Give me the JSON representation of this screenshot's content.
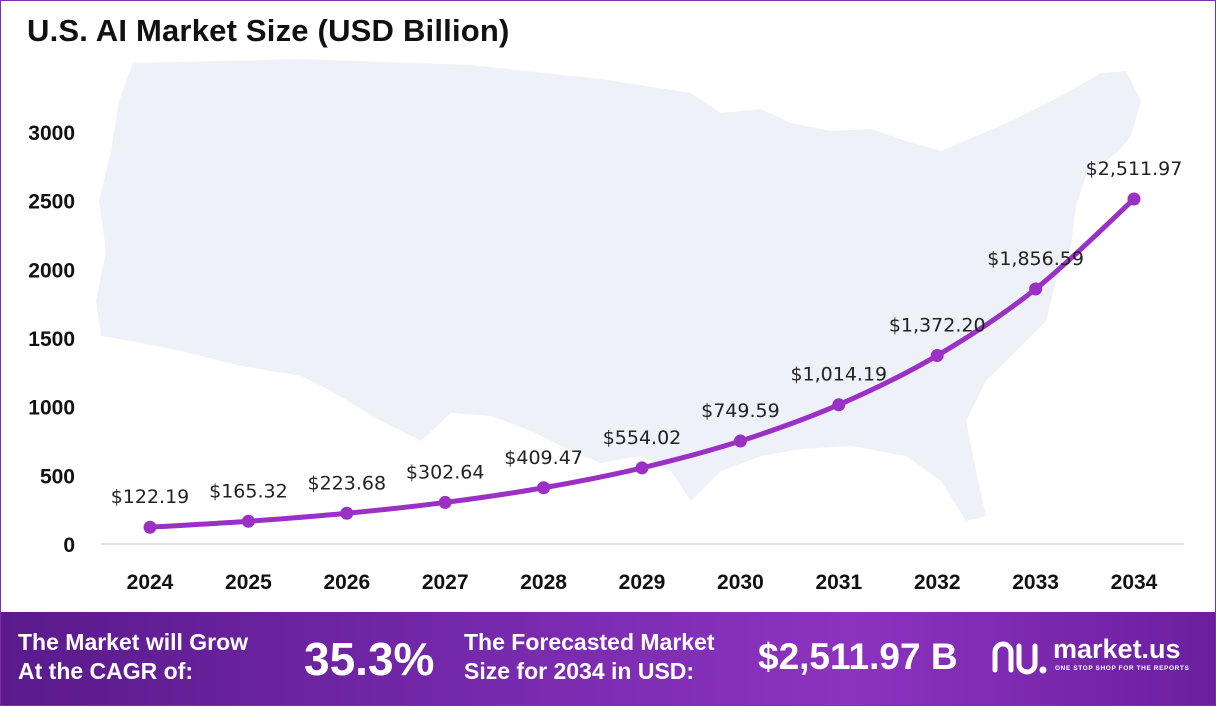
{
  "title": "U.S. AI Market Size (USD Billion)",
  "chart_data": {
    "type": "line",
    "categories": [
      "2024",
      "2025",
      "2026",
      "2027",
      "2028",
      "2029",
      "2030",
      "2031",
      "2032",
      "2033",
      "2034"
    ],
    "values": [
      122.19,
      165.32,
      223.68,
      302.64,
      409.47,
      554.02,
      749.59,
      1014.19,
      1372.2,
      1856.59,
      2511.97
    ],
    "data_labels": [
      "$122.19",
      "$165.32",
      "$223.68",
      "$302.64",
      "$409.47",
      "$554.02",
      "$749.59",
      "$1,014.19",
      "$1,372.20",
      "$1,856.59",
      "$2,511.97"
    ],
    "y_ticks": [
      0,
      500,
      1000,
      1500,
      2000,
      2500,
      3000
    ],
    "ylim": [
      0,
      3000
    ],
    "grid": false,
    "legend": false,
    "line_color": "#9b30c4",
    "background_image": "us-map-silhouette"
  },
  "footer": {
    "cagr_text_line1": "The Market will Grow",
    "cagr_text_line2": "At the CAGR of:",
    "cagr_value": "35.3%",
    "forecast_text_line1": "The Forecasted Market",
    "forecast_text_line2": "Size for 2034 in USD:",
    "forecast_value": "$2,511.97 B",
    "brand_name": "market.us",
    "brand_tagline": "ONE STOP SHOP FOR THE REPORTS"
  },
  "colors": {
    "line": "#9b30c4",
    "footer_bg": "#6f24a6",
    "map": "#eef1f8"
  }
}
